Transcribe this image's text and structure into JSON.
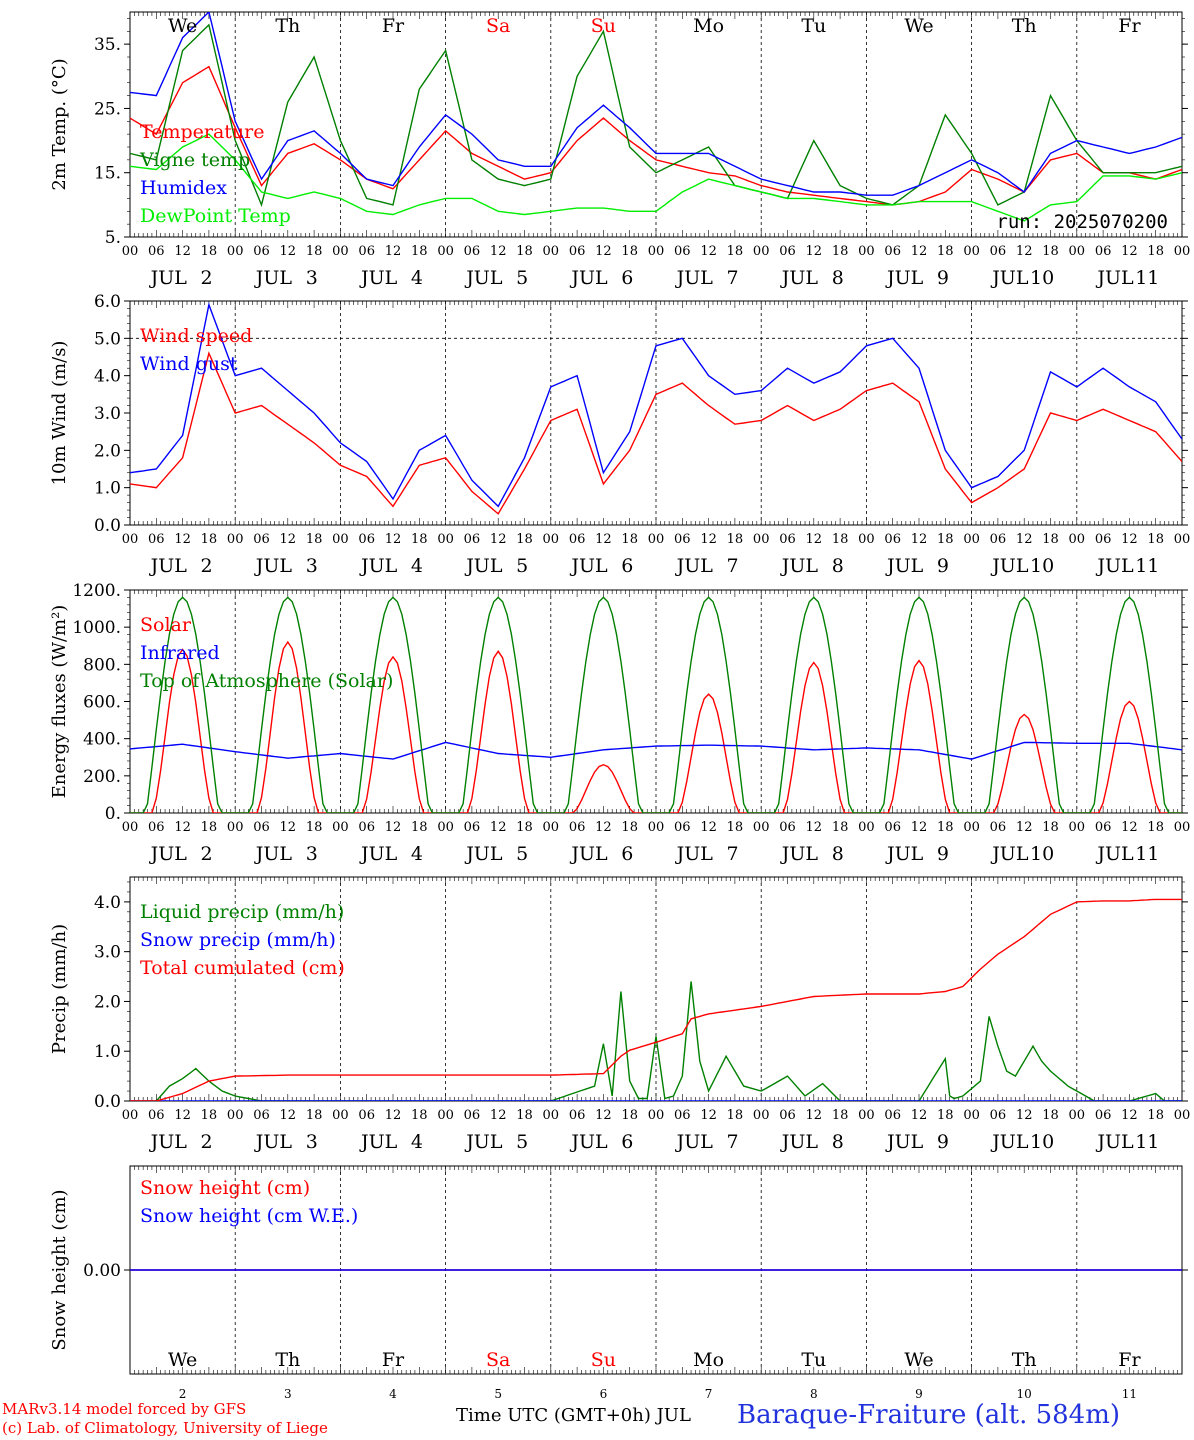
{
  "chart_data": [
    {
      "type": "line",
      "ylabel": "2m Temp. (°C)",
      "ylim": [
        5,
        40
      ],
      "yticks": [
        5,
        15,
        25,
        35
      ],
      "ytick_labels": [
        "5.",
        "15.",
        "25.",
        "35."
      ],
      "run_label": "run: 2025070200",
      "series": [
        {
          "name": "Temperature",
          "color": "#ff0000",
          "x": [
            0,
            6,
            12,
            18,
            24,
            30,
            36,
            42,
            48,
            54,
            60,
            66,
            72,
            78,
            84,
            90,
            96,
            102,
            108,
            114,
            120,
            126,
            132,
            138,
            144,
            150,
            156,
            162,
            168,
            174,
            180,
            186,
            192,
            198,
            204,
            210,
            216,
            222,
            228,
            234,
            240
          ],
          "y": [
            23.5,
            21,
            29,
            31.5,
            22,
            13,
            18,
            19.5,
            17,
            14,
            12.5,
            17,
            21.5,
            18,
            16,
            14,
            15,
            20,
            23.5,
            20,
            17,
            16,
            15,
            14.5,
            13,
            12,
            11.5,
            11,
            10.5,
            10,
            10.5,
            12,
            15.5,
            14,
            12,
            17,
            18,
            15,
            15,
            14,
            15.5
          ]
        },
        {
          "name": "Vigne temp",
          "color": "#008000",
          "x": [
            0,
            6,
            12,
            18,
            24,
            30,
            36,
            42,
            48,
            54,
            60,
            66,
            72,
            78,
            84,
            90,
            96,
            102,
            108,
            114,
            120,
            126,
            132,
            138,
            144,
            150,
            156,
            162,
            168,
            174,
            180,
            186,
            192,
            198,
            204,
            210,
            216,
            222,
            228,
            234,
            240
          ],
          "y": [
            18,
            17,
            34,
            38,
            20,
            10,
            26,
            33,
            20,
            11,
            10,
            28,
            34,
            17,
            14,
            13,
            14,
            30,
            37,
            19,
            15,
            17,
            19,
            13,
            12,
            11,
            20,
            13,
            11,
            10,
            13,
            24,
            18,
            10,
            12,
            27,
            20,
            15,
            15,
            15,
            16
          ]
        },
        {
          "name": "Humidex",
          "color": "#0000ff",
          "x": [
            0,
            6,
            12,
            18,
            24,
            30,
            36,
            42,
            48,
            54,
            60,
            66,
            72,
            78,
            84,
            90,
            96,
            102,
            108,
            114,
            120,
            126,
            132,
            138,
            144,
            150,
            156,
            162,
            168,
            174,
            180,
            186,
            192,
            198,
            204,
            210,
            216,
            222,
            228,
            234,
            240
          ],
          "y": [
            27.5,
            27,
            36,
            40,
            23,
            14,
            20,
            21.5,
            18,
            14,
            13,
            19,
            24,
            21,
            17,
            16,
            16,
            22,
            25.5,
            22,
            18,
            18,
            18,
            16,
            14,
            13,
            12,
            12,
            11.5,
            11.5,
            13,
            15,
            17,
            15,
            12,
            18,
            20,
            19,
            18,
            19,
            20.5
          ]
        },
        {
          "name": "DewPoint Temp",
          "color": "#00ee00",
          "x": [
            0,
            6,
            12,
            18,
            24,
            30,
            36,
            42,
            48,
            54,
            60,
            66,
            72,
            78,
            84,
            90,
            96,
            102,
            108,
            114,
            120,
            126,
            132,
            138,
            144,
            150,
            156,
            162,
            168,
            174,
            180,
            186,
            192,
            198,
            204,
            210,
            216,
            222,
            228,
            234,
            240
          ],
          "y": [
            16,
            15.5,
            19,
            21,
            17,
            12,
            11,
            12,
            11,
            9,
            8.5,
            10,
            11,
            11,
            9,
            8.5,
            9,
            9.5,
            9.5,
            9,
            9,
            12,
            14,
            13,
            12,
            11,
            11,
            10.5,
            10,
            10,
            10.5,
            10.5,
            10.5,
            9,
            7.5,
            10,
            10.5,
            14.5,
            14.5,
            14,
            15
          ]
        }
      ]
    },
    {
      "type": "line",
      "ylabel": "10m Wind (m/s)",
      "ylim": [
        0,
        6
      ],
      "yticks": [
        0,
        1,
        2,
        3,
        4,
        5,
        6
      ],
      "ytick_labels": [
        "0.0",
        "1.0",
        "2.0",
        "3.0",
        "4.0",
        "5.0",
        "6.0"
      ],
      "reference_line": 5,
      "series": [
        {
          "name": "Wind speed",
          "color": "#ff0000",
          "x": [
            0,
            6,
            12,
            18,
            24,
            30,
            36,
            42,
            48,
            54,
            60,
            66,
            72,
            78,
            84,
            90,
            96,
            102,
            108,
            114,
            120,
            126,
            132,
            138,
            144,
            150,
            156,
            162,
            168,
            174,
            180,
            186,
            192,
            198,
            204,
            210,
            216,
            222,
            228,
            234,
            240
          ],
          "y": [
            1.1,
            1.0,
            1.8,
            4.6,
            3.0,
            3.2,
            2.7,
            2.2,
            1.6,
            1.3,
            0.5,
            1.6,
            1.8,
            0.9,
            0.3,
            1.5,
            2.8,
            3.1,
            1.1,
            2.0,
            3.5,
            3.8,
            3.2,
            2.7,
            2.8,
            3.2,
            2.8,
            3.1,
            3.6,
            3.8,
            3.3,
            1.5,
            0.6,
            1.0,
            1.5,
            3.0,
            2.8,
            3.1,
            2.8,
            2.5,
            1.7
          ]
        },
        {
          "name": "Wind gust",
          "color": "#0000ff",
          "x": [
            0,
            6,
            12,
            18,
            24,
            30,
            36,
            42,
            48,
            54,
            60,
            66,
            72,
            78,
            84,
            90,
            96,
            102,
            108,
            114,
            120,
            126,
            132,
            138,
            144,
            150,
            156,
            162,
            168,
            174,
            180,
            186,
            192,
            198,
            204,
            210,
            216,
            222,
            228,
            234,
            240
          ],
          "y": [
            1.4,
            1.5,
            2.4,
            5.9,
            4.0,
            4.2,
            3.6,
            3.0,
            2.2,
            1.7,
            0.7,
            2.0,
            2.4,
            1.2,
            0.5,
            1.8,
            3.7,
            4.0,
            1.4,
            2.5,
            4.8,
            5.0,
            4.0,
            3.5,
            3.6,
            4.2,
            3.8,
            4.1,
            4.8,
            5.0,
            4.2,
            2.0,
            1.0,
            1.3,
            2.0,
            4.1,
            3.7,
            4.2,
            3.7,
            3.3,
            2.3
          ]
        }
      ]
    },
    {
      "type": "line",
      "ylabel": "Energy fluxes (W/m²)",
      "ylim": [
        0,
        1200
      ],
      "yticks": [
        0,
        200,
        400,
        600,
        800,
        1000,
        1200
      ],
      "ytick_labels": [
        "0.",
        "200.",
        "400.",
        "600.",
        "800.",
        "1000.",
        "1200."
      ],
      "series": [
        {
          "name": "Solar",
          "color": "#ff0000",
          "daily_peak": [
            880,
            920,
            840,
            870,
            260,
            640,
            810,
            820,
            530,
            600
          ]
        },
        {
          "name": "Infrared",
          "color": "#0000ff",
          "x": [
            0,
            12,
            24,
            36,
            48,
            60,
            72,
            84,
            96,
            108,
            120,
            132,
            144,
            156,
            168,
            180,
            192,
            204,
            216,
            228,
            240
          ],
          "y": [
            345,
            370,
            330,
            295,
            320,
            290,
            380,
            320,
            300,
            340,
            360,
            365,
            360,
            340,
            350,
            340,
            290,
            380,
            375,
            375,
            340
          ]
        },
        {
          "name": "Top of Atmosphere (Solar)",
          "color": "#008000",
          "daily_peak": [
            1160,
            1160,
            1160,
            1160,
            1160,
            1160,
            1160,
            1160,
            1160,
            1160
          ]
        }
      ]
    },
    {
      "type": "line",
      "ylabel": "Precip (mm/h)",
      "ylim": [
        0,
        4.5
      ],
      "yticks": [
        0,
        1,
        2,
        3,
        4
      ],
      "ytick_labels": [
        "0.0",
        "1.0",
        "2.0",
        "3.0",
        "4.0"
      ],
      "series": [
        {
          "name": "Liquid precip (mm/h)",
          "color": "#008000",
          "x": [
            0,
            6,
            9,
            12,
            15,
            18,
            21,
            24,
            30,
            36,
            48,
            96,
            106,
            108,
            110,
            112,
            114,
            116,
            118,
            120,
            122,
            124,
            126,
            128,
            130,
            132,
            136,
            140,
            144,
            150,
            154,
            158,
            162,
            180,
            186,
            187,
            188,
            190,
            194,
            196,
            198,
            200,
            202,
            204,
            206,
            208,
            210,
            214,
            220,
            228,
            234,
            236,
            240
          ],
          "y": [
            0,
            0,
            0.3,
            0.45,
            0.65,
            0.4,
            0.2,
            0.1,
            0,
            0,
            0,
            0,
            0.3,
            1.15,
            0.1,
            2.2,
            0.4,
            0.05,
            0.05,
            1.3,
            0.05,
            0.1,
            0.5,
            2.4,
            0.8,
            0.2,
            0.9,
            0.3,
            0.2,
            0.5,
            0.1,
            0.35,
            0,
            0,
            0.85,
            0.1,
            0.05,
            0.1,
            0.4,
            1.7,
            1.1,
            0.6,
            0.5,
            0.8,
            1.1,
            0.8,
            0.6,
            0.3,
            0,
            0,
            0.15,
            0,
            0
          ]
        },
        {
          "name": "Snow precip (mm/h)",
          "color": "#0000ff",
          "x": [
            0,
            240
          ],
          "y": [
            0,
            0
          ]
        },
        {
          "name": "Total cumulated (cm)",
          "color": "#ff0000",
          "x": [
            0,
            6,
            12,
            18,
            24,
            36,
            48,
            96,
            108,
            112,
            114,
            120,
            126,
            128,
            132,
            144,
            156,
            168,
            180,
            186,
            190,
            194,
            198,
            204,
            210,
            216,
            222,
            228,
            234,
            240
          ],
          "y": [
            0,
            0,
            0.15,
            0.4,
            0.5,
            0.52,
            0.52,
            0.52,
            0.55,
            0.9,
            1.02,
            1.18,
            1.35,
            1.65,
            1.75,
            1.9,
            2.1,
            2.15,
            2.15,
            2.2,
            2.3,
            2.65,
            2.95,
            3.3,
            3.75,
            4.0,
            4.02,
            4.02,
            4.05,
            4.05
          ]
        }
      ]
    },
    {
      "type": "line",
      "ylabel": "Snow height (cm)",
      "ylim": [
        -1,
        1
      ],
      "yticks": [
        0
      ],
      "ytick_labels": [
        "0.00"
      ],
      "series": [
        {
          "name": "Snow height (cm)",
          "color": "#ff0000",
          "x": [
            0,
            240
          ],
          "y": [
            0,
            0
          ]
        },
        {
          "name": "Snow height (cm W.E.)",
          "color": "#0000ff",
          "x": [
            0,
            240
          ],
          "y": [
            0,
            0
          ]
        }
      ]
    }
  ],
  "axis": {
    "hour_labels": [
      "00",
      "06",
      "12",
      "18"
    ],
    "end_label": "00",
    "month": "JUL",
    "dates": [
      "2",
      "3",
      "4",
      "5",
      "6",
      "7",
      "8",
      "9",
      "10",
      "11"
    ],
    "weekdays": [
      "We",
      "Th",
      "Fr",
      "Sa",
      "Su",
      "Mo",
      "Tu",
      "We",
      "Th",
      "Fr"
    ],
    "weekend_days": [
      3,
      4
    ],
    "xlabel": "Time UTC (GMT+0h) JUL"
  },
  "footer": {
    "credit_line1": "MARv3.14 model forced by GFS",
    "credit_line2": "(c) Lab. of Climatology, University of Liege",
    "station": "Baraque-Fraiture (alt. 584m)"
  },
  "colors": {
    "red": "#ff0000",
    "green": "#008000",
    "blue": "#0000ff",
    "light_green": "#00ee00"
  }
}
